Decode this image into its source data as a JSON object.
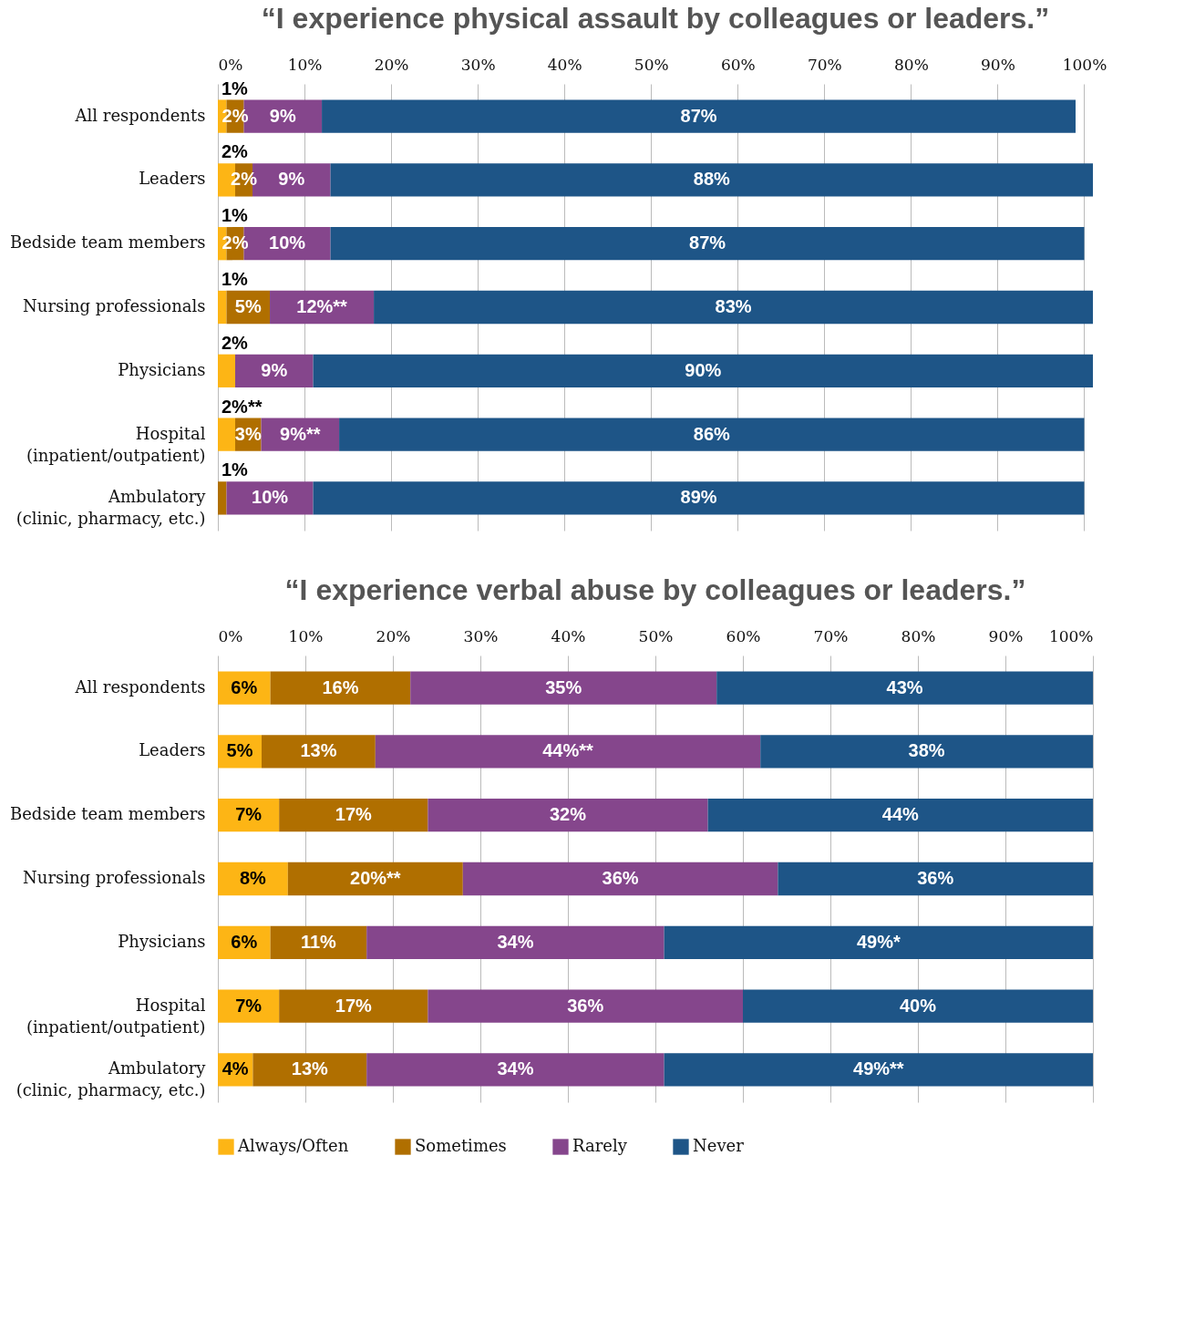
{
  "chart_data": [
    {
      "type": "bar",
      "orientation": "horizontal",
      "stacked": true,
      "title": "“I experience physical assault by colleagues or leaders.”",
      "categories": [
        "All respondents",
        "Leaders",
        "Bedside team members",
        "Nursing professionals",
        "Physicians",
        "Hospital\n(inpatient/outpatient)",
        "Ambulatory\n(clinic, pharmacy, etc.)"
      ],
      "series": [
        {
          "name": "Always/Often",
          "color": "#fdb515",
          "values": [
            1,
            2,
            1,
            1,
            2,
            2,
            null
          ],
          "value_labels": [
            "1%",
            "2%",
            "1%",
            "1%",
            "2%",
            "2%**",
            null
          ]
        },
        {
          "name": "Sometimes",
          "color": "#b06f00",
          "values": [
            2,
            2,
            2,
            5,
            null,
            3,
            1
          ],
          "value_labels": [
            "2%",
            "2%",
            "2%",
            "5%",
            null,
            "3%",
            "1%"
          ]
        },
        {
          "name": "Rarely",
          "color": "#85468c",
          "values": [
            9,
            9,
            10,
            12,
            9,
            9,
            10
          ],
          "value_labels": [
            "9%",
            "9%",
            "10%",
            "12%**",
            "9%",
            "9%**",
            "10%"
          ]
        },
        {
          "name": "Never",
          "color": "#1e5587",
          "values": [
            87,
            88,
            87,
            83,
            90,
            86,
            89
          ],
          "value_labels": [
            "87%",
            "88%",
            "87%",
            "83%",
            "90%",
            "86%",
            "89%"
          ]
        }
      ],
      "xlim": [
        0,
        101
      ],
      "xticks": [
        {
          "value": 0,
          "label": "0%"
        },
        {
          "value": 10,
          "label": "10%"
        },
        {
          "value": 20,
          "label": "20%"
        },
        {
          "value": 30,
          "label": "30%"
        },
        {
          "value": 40,
          "label": "40%"
        },
        {
          "value": 50,
          "label": "50%"
        },
        {
          "value": 60,
          "label": "60%"
        },
        {
          "value": 70,
          "label": "70%"
        },
        {
          "value": 80,
          "label": "80%"
        },
        {
          "value": 90,
          "label": "90%"
        },
        {
          "value": 100,
          "label": "100%"
        }
      ],
      "grid": "x",
      "legend": "bottom"
    },
    {
      "type": "bar",
      "orientation": "horizontal",
      "stacked": true,
      "title": "“I experience verbal abuse by colleagues or leaders.”",
      "categories": [
        "All respondents",
        "Leaders",
        "Bedside team members",
        "Nursing professionals",
        "Physicians",
        "Hospital\n(inpatient/outpatient)",
        "Ambulatory\n(clinic, pharmacy, etc.)"
      ],
      "series": [
        {
          "name": "Always/Often",
          "color": "#fdb515",
          "values": [
            6,
            5,
            7,
            8,
            6,
            7,
            4
          ],
          "value_labels": [
            "6%",
            "5%",
            "7%",
            "8%",
            "6%",
            "7%",
            "4%"
          ]
        },
        {
          "name": "Sometimes",
          "color": "#b06f00",
          "values": [
            16,
            13,
            17,
            20,
            11,
            17,
            13
          ],
          "value_labels": [
            "16%",
            "13%",
            "17%",
            "20%**",
            "11%",
            "17%",
            "13%"
          ]
        },
        {
          "name": "Rarely",
          "color": "#85468c",
          "values": [
            35,
            44,
            32,
            36,
            34,
            36,
            34
          ],
          "value_labels": [
            "35%",
            "44%**",
            "32%",
            "36%",
            "34%",
            "36%",
            "34%"
          ]
        },
        {
          "name": "Never",
          "color": "#1e5587",
          "values": [
            43,
            38,
            44,
            36,
            49,
            40,
            49
          ],
          "value_labels": [
            "43%",
            "38%",
            "44%",
            "36%",
            "49%*",
            "40%",
            "49%**"
          ]
        }
      ],
      "xlim": [
        0,
        100
      ],
      "xticks": [
        {
          "value": 0,
          "label": "0%"
        },
        {
          "value": 10,
          "label": "10%"
        },
        {
          "value": 20,
          "label": "20%"
        },
        {
          "value": 30,
          "label": "30%"
        },
        {
          "value": 40,
          "label": "40%"
        },
        {
          "value": 50,
          "label": "50%"
        },
        {
          "value": 60,
          "label": "60%"
        },
        {
          "value": 70,
          "label": "70%"
        },
        {
          "value": 80,
          "label": "80%"
        },
        {
          "value": 90,
          "label": "90%"
        },
        {
          "value": 100,
          "label": "100%"
        }
      ],
      "grid": "x",
      "legend": "bottom"
    }
  ]
}
